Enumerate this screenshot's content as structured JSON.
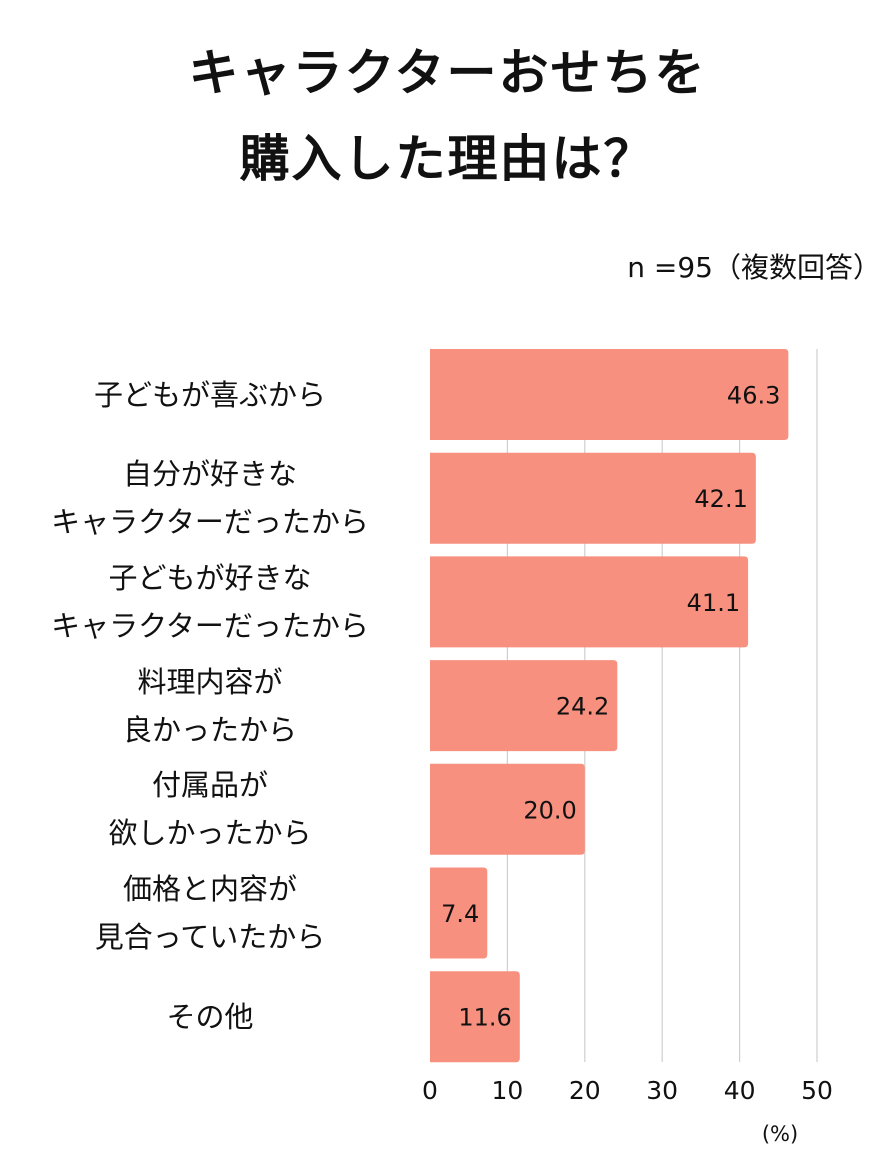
{
  "chart_data": {
    "type": "bar",
    "orientation": "horizontal",
    "title": [
      "キャラクターおせちを",
      "購入した理由は？"
    ],
    "note": "n =95（複数回答）",
    "categories": [
      [
        "子どもが喜ぶから"
      ],
      [
        "自分が好きな",
        "キャラクターだったから"
      ],
      [
        "子どもが好きな",
        "キャラクターだったから"
      ],
      [
        "料理内容が",
        "良かったから"
      ],
      [
        "付属品が",
        "欲しかったから"
      ],
      [
        "価格と内容が",
        "見合っていたから"
      ],
      [
        "その他"
      ]
    ],
    "values": [
      46.3,
      42.1,
      41.1,
      24.2,
      20.0,
      7.4,
      11.6
    ],
    "value_labels": [
      "46.3",
      "42.1",
      "41.1",
      "24.2",
      "20.0",
      "7.4",
      "11.6"
    ],
    "xlim": [
      0,
      50
    ],
    "xticks": [
      "0",
      "10",
      "20",
      "30",
      "40",
      "50"
    ],
    "xunit": "(%)",
    "grid": true,
    "bar_color": "#f7907f"
  }
}
